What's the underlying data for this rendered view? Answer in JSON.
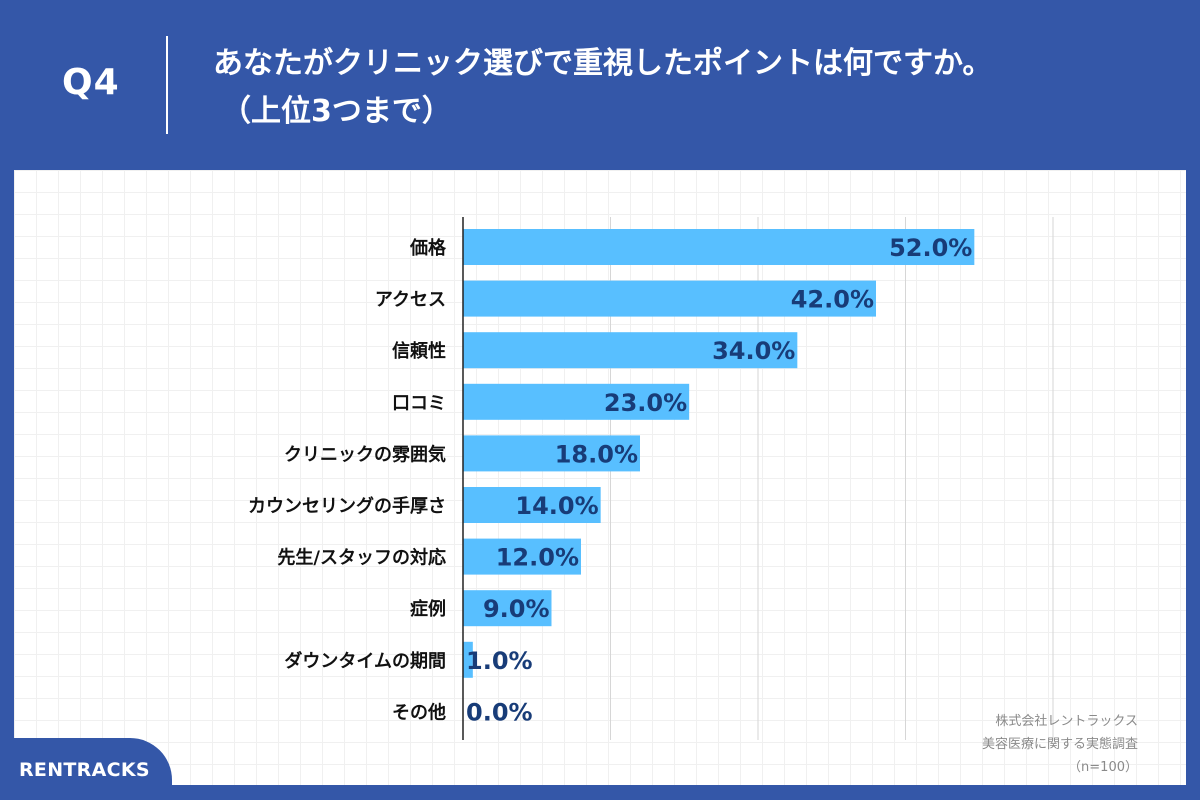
{
  "header": {
    "question_label": "Q4",
    "title_line1": "あなたがクリニック選びで重視したポイントは何ですか。",
    "title_line2": "（上位3つまで）"
  },
  "colors": {
    "background": "#3457a8",
    "bar": "#58bfff",
    "value_label": "#183c78"
  },
  "chart_data": {
    "type": "bar",
    "orientation": "horizontal",
    "categories": [
      "価格",
      "アクセス",
      "信頼性",
      "口コミ",
      "クリニックの雰囲気",
      "カウンセリングの手厚さ",
      "先生/スタッフの対応",
      "症例",
      "ダウンタイムの期間",
      "その他"
    ],
    "values": [
      52.0,
      42.0,
      34.0,
      23.0,
      18.0,
      14.0,
      12.0,
      9.0,
      1.0,
      0.0
    ],
    "value_labels": [
      "52.0%",
      "42.0%",
      "34.0%",
      "23.0%",
      "18.0%",
      "14.0%",
      "12.0%",
      "9.0%",
      "1.0%",
      "0.0%"
    ],
    "unit": "%",
    "xlim": [
      0,
      60
    ],
    "x_gridline_step": 15,
    "grid": true,
    "title": "",
    "xlabel": "",
    "ylabel": ""
  },
  "source": {
    "line1": "株式会社レントラックス",
    "line2": "美容医療に関する実態調査",
    "line3": "（n=100）"
  },
  "logo": {
    "text": "RENTRACKS"
  }
}
